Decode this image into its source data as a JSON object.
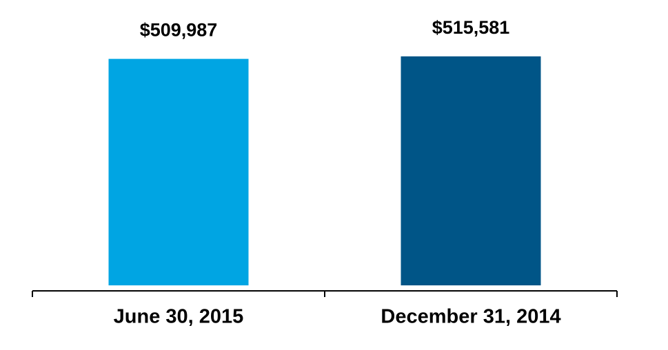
{
  "chart_data": {
    "type": "bar",
    "categories": [
      "June 30, 2015",
      "December 31, 2014"
    ],
    "series": [
      {
        "values": [
          509987,
          515581
        ],
        "value_labels": [
          "$509,987",
          "$515,581"
        ],
        "colors": [
          "#00a5e3",
          "#005587"
        ]
      }
    ]
  }
}
